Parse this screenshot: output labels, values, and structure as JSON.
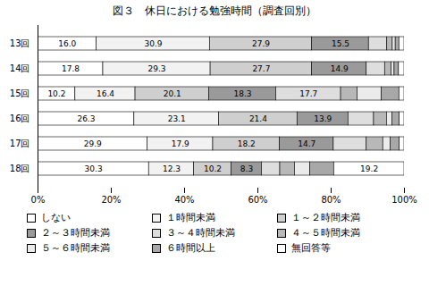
{
  "chart_data": {
    "type": "bar",
    "title": "図３　休日における勉強時間（調査回別）",
    "orientation": "horizontal",
    "stacked": true,
    "data_labels": true,
    "grid": false,
    "legend": "bottom",
    "categories": [
      "13回",
      "14回",
      "15回",
      "16回",
      "17回",
      "18回"
    ],
    "xlim": [
      0,
      100
    ],
    "xticks": [
      {
        "value": 0,
        "label": "0%"
      },
      {
        "value": 20,
        "label": "20%"
      },
      {
        "value": 40,
        "label": "40%"
      },
      {
        "value": 60,
        "label": "60%"
      },
      {
        "value": 80,
        "label": "80%"
      },
      {
        "value": 100,
        "label": "100%"
      }
    ],
    "series": [
      {
        "name": "しない",
        "color": "#ffffff",
        "values": [
          16.0,
          17.8,
          10.2,
          26.3,
          29.9,
          30.3
        ],
        "value_labels": [
          "16.0",
          "17.8",
          "10.2",
          "26.3",
          "29.9",
          "30.3"
        ]
      },
      {
        "name": "１時間未満",
        "color": "#f2f2f2",
        "values": [
          30.9,
          29.3,
          16.4,
          23.1,
          17.9,
          12.3
        ],
        "value_labels": [
          "30.9",
          "29.3",
          "16.4",
          "23.1",
          "17.9",
          "12.3"
        ]
      },
      {
        "name": "１～２時間未満",
        "color": "#cfcfcf",
        "values": [
          27.9,
          27.7,
          20.1,
          21.4,
          18.2,
          10.2
        ],
        "value_labels": [
          "27.9",
          "27.7",
          "20.1",
          "21.4",
          "18.2",
          "10.2"
        ]
      },
      {
        "name": "２～３時間未満",
        "color": "#9a9a9a",
        "values": [
          15.5,
          14.9,
          18.3,
          13.9,
          14.7,
          8.3
        ],
        "value_labels": [
          "15.5",
          "14.9",
          "18.3",
          "13.9",
          "14.7",
          "8.3"
        ]
      },
      {
        "name": "３～４時間未満",
        "color": "#dedede",
        "values": [
          5.0,
          5.0,
          17.7,
          7.0,
          9.0,
          5.0
        ],
        "value_labels": [
          null,
          null,
          "17.7",
          null,
          null,
          null
        ]
      },
      {
        "name": "４～５時間未満",
        "color": "#b8b8b8",
        "values": [
          1.5,
          1.8,
          4.5,
          3.5,
          4.5,
          4.0
        ],
        "value_labels": [
          null,
          null,
          null,
          null,
          null,
          null
        ]
      },
      {
        "name": "５～６時間未満",
        "color": "#ebebeb",
        "values": [
          0.8,
          0.8,
          6.6,
          1.5,
          2.0,
          4.2
        ],
        "value_labels": [
          null,
          null,
          null,
          null,
          null,
          null
        ]
      },
      {
        "name": "６時間以上",
        "color": "#a8a8a8",
        "values": [
          1.0,
          1.2,
          4.8,
          2.0,
          2.5,
          6.5
        ],
        "value_labels": [
          null,
          null,
          null,
          null,
          null,
          null
        ]
      },
      {
        "name": "無回答等",
        "color": "#ffffff",
        "values": [
          1.4,
          1.5,
          1.4,
          1.3,
          1.3,
          19.2
        ],
        "value_labels": [
          null,
          null,
          null,
          null,
          null,
          "19.2"
        ]
      }
    ]
  }
}
